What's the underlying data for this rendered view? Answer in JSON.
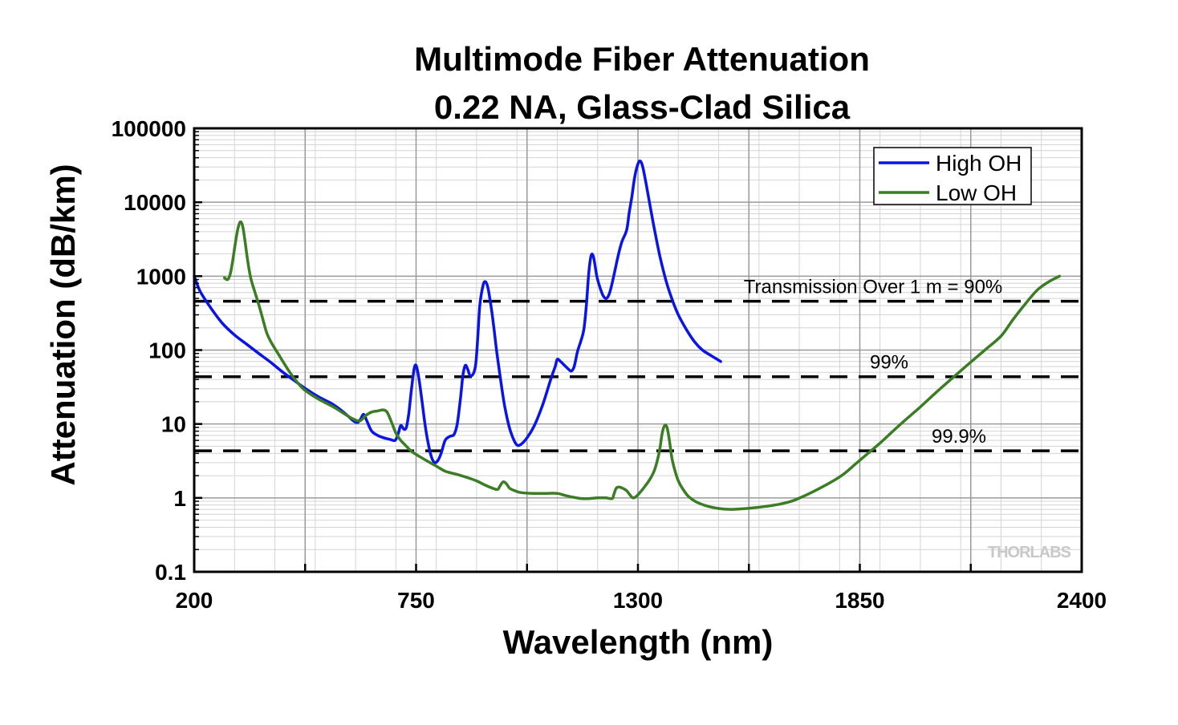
{
  "chart_data": {
    "type": "line",
    "title": [
      "Multimode Fiber Attenuation",
      "0.22 NA, Glass-Clad Silica"
    ],
    "xlabel": "Wavelength (nm)",
    "ylabel": "Attenuation (dB/km)",
    "xlim": [
      200,
      2400
    ],
    "ylim": [
      0.1,
      100000
    ],
    "yscale": "log",
    "xticks": [
      200,
      750,
      1300,
      1850,
      2400
    ],
    "yticks": [
      0.1,
      1,
      10,
      100,
      1000,
      10000,
      100000
    ],
    "ytick_labels": [
      "0.1",
      "1",
      "10",
      "100",
      "1000",
      "10000",
      "100000"
    ],
    "grid": true,
    "legend_position": "top-right",
    "series": [
      {
        "name": "High OH",
        "color": "#0a14e6",
        "points": [
          [
            200,
            1000
          ],
          [
            215,
            620
          ],
          [
            240,
            380
          ],
          [
            270,
            230
          ],
          [
            300,
            160
          ],
          [
            330,
            120
          ],
          [
            360,
            90
          ],
          [
            390,
            68
          ],
          [
            420,
            50
          ],
          [
            450,
            38
          ],
          [
            480,
            29
          ],
          [
            510,
            23
          ],
          [
            540,
            19
          ],
          [
            560,
            16
          ],
          [
            580,
            13
          ],
          [
            595,
            11
          ],
          [
            605,
            10.5
          ],
          [
            612,
            11.5
          ],
          [
            620,
            13.5
          ],
          [
            628,
            11
          ],
          [
            640,
            8
          ],
          [
            655,
            7
          ],
          [
            670,
            6.5
          ],
          [
            685,
            6.2
          ],
          [
            698,
            6
          ],
          [
            706,
            7.5
          ],
          [
            712,
            9.5
          ],
          [
            720,
            8.5
          ],
          [
            726,
            9
          ],
          [
            732,
            14
          ],
          [
            738,
            28
          ],
          [
            745,
            55
          ],
          [
            750,
            62
          ],
          [
            756,
            45
          ],
          [
            764,
            22
          ],
          [
            772,
            10
          ],
          [
            780,
            5.5
          ],
          [
            788,
            3.6
          ],
          [
            796,
            3
          ],
          [
            804,
            3.2
          ],
          [
            812,
            4
          ],
          [
            822,
            6
          ],
          [
            834,
            6.8
          ],
          [
            844,
            7.2
          ],
          [
            852,
            10
          ],
          [
            860,
            22
          ],
          [
            866,
            45
          ],
          [
            872,
            62
          ],
          [
            878,
            55
          ],
          [
            884,
            45
          ],
          [
            892,
            48
          ],
          [
            898,
            65
          ],
          [
            903,
            150
          ],
          [
            908,
            400
          ],
          [
            916,
            750
          ],
          [
            922,
            840
          ],
          [
            928,
            700
          ],
          [
            935,
            420
          ],
          [
            942,
            220
          ],
          [
            950,
            95
          ],
          [
            960,
            38
          ],
          [
            970,
            17
          ],
          [
            980,
            9.5
          ],
          [
            990,
            6.5
          ],
          [
            1000,
            5.2
          ],
          [
            1010,
            5.3
          ],
          [
            1025,
            6.5
          ],
          [
            1045,
            10
          ],
          [
            1065,
            19
          ],
          [
            1085,
            42
          ],
          [
            1095,
            60
          ],
          [
            1100,
            75
          ],
          [
            1108,
            70
          ],
          [
            1118,
            62
          ],
          [
            1128,
            55
          ],
          [
            1135,
            52
          ],
          [
            1142,
            60
          ],
          [
            1150,
            95
          ],
          [
            1158,
            130
          ],
          [
            1166,
            190
          ],
          [
            1172,
            400
          ],
          [
            1178,
            1100
          ],
          [
            1184,
            1900
          ],
          [
            1190,
            1800
          ],
          [
            1198,
            1000
          ],
          [
            1206,
            700
          ],
          [
            1214,
            540
          ],
          [
            1222,
            500
          ],
          [
            1230,
            600
          ],
          [
            1240,
            1000
          ],
          [
            1250,
            1800
          ],
          [
            1260,
            2900
          ],
          [
            1272,
            4200
          ],
          [
            1278,
            7000
          ],
          [
            1285,
            12000
          ],
          [
            1292,
            22000
          ],
          [
            1300,
            33000
          ],
          [
            1306,
            36000
          ],
          [
            1312,
            30000
          ],
          [
            1320,
            18000
          ],
          [
            1330,
            9000
          ],
          [
            1342,
            4000
          ],
          [
            1355,
            1800
          ],
          [
            1370,
            850
          ],
          [
            1385,
            480
          ],
          [
            1400,
            300
          ],
          [
            1420,
            190
          ],
          [
            1440,
            130
          ],
          [
            1460,
            100
          ],
          [
            1480,
            85
          ],
          [
            1500,
            73
          ],
          [
            1505,
            70
          ]
        ]
      },
      {
        "name": "Low OH",
        "color": "#3a7d23",
        "points": [
          [
            275,
            950
          ],
          [
            283,
            900
          ],
          [
            290,
            1100
          ],
          [
            296,
            1700
          ],
          [
            302,
            2800
          ],
          [
            308,
            4300
          ],
          [
            314,
            5400
          ],
          [
            320,
            4800
          ],
          [
            326,
            3000
          ],
          [
            332,
            1700
          ],
          [
            340,
            950
          ],
          [
            350,
            620
          ],
          [
            362,
            380
          ],
          [
            372,
            240
          ],
          [
            380,
            170
          ],
          [
            390,
            130
          ],
          [
            405,
            95
          ],
          [
            420,
            70
          ],
          [
            435,
            52
          ],
          [
            450,
            40
          ],
          [
            470,
            30
          ],
          [
            495,
            24
          ],
          [
            520,
            20
          ],
          [
            545,
            17
          ],
          [
            570,
            14
          ],
          [
            590,
            12
          ],
          [
            610,
            11
          ],
          [
            625,
            13
          ],
          [
            640,
            14.5
          ],
          [
            655,
            15
          ],
          [
            668,
            15.5
          ],
          [
            678,
            14.5
          ],
          [
            688,
            11
          ],
          [
            700,
            7.5
          ],
          [
            712,
            6
          ],
          [
            726,
            5
          ],
          [
            740,
            4.2
          ],
          [
            760,
            3.6
          ],
          [
            780,
            3.1
          ],
          [
            800,
            2.7
          ],
          [
            822,
            2.3
          ],
          [
            848,
            2.1
          ],
          [
            875,
            1.9
          ],
          [
            900,
            1.7
          ],
          [
            920,
            1.5
          ],
          [
            940,
            1.35
          ],
          [
            952,
            1.3
          ],
          [
            958,
            1.45
          ],
          [
            966,
            1.65
          ],
          [
            974,
            1.55
          ],
          [
            982,
            1.35
          ],
          [
            995,
            1.25
          ],
          [
            1010,
            1.18
          ],
          [
            1040,
            1.15
          ],
          [
            1070,
            1.15
          ],
          [
            1100,
            1.15
          ],
          [
            1120,
            1.08
          ],
          [
            1140,
            1.02
          ],
          [
            1160,
            0.98
          ],
          [
            1180,
            0.98
          ],
          [
            1200,
            1.0
          ],
          [
            1220,
            1.0
          ],
          [
            1236,
            0.98
          ],
          [
            1240,
            1.1
          ],
          [
            1246,
            1.35
          ],
          [
            1254,
            1.4
          ],
          [
            1262,
            1.35
          ],
          [
            1272,
            1.25
          ],
          [
            1280,
            1.1
          ],
          [
            1288,
            1.0
          ],
          [
            1296,
            1.05
          ],
          [
            1306,
            1.2
          ],
          [
            1318,
            1.45
          ],
          [
            1330,
            1.8
          ],
          [
            1340,
            2.3
          ],
          [
            1348,
            3.2
          ],
          [
            1354,
            4.5
          ],
          [
            1360,
            7.5
          ],
          [
            1366,
            9.5
          ],
          [
            1372,
            9
          ],
          [
            1378,
            6
          ],
          [
            1384,
            3.5
          ],
          [
            1392,
            2.3
          ],
          [
            1400,
            1.7
          ],
          [
            1410,
            1.35
          ],
          [
            1425,
            1.05
          ],
          [
            1445,
            0.88
          ],
          [
            1470,
            0.78
          ],
          [
            1500,
            0.72
          ],
          [
            1530,
            0.7
          ],
          [
            1570,
            0.72
          ],
          [
            1610,
            0.76
          ],
          [
            1650,
            0.82
          ],
          [
            1680,
            0.9
          ],
          [
            1710,
            1.05
          ],
          [
            1745,
            1.3
          ],
          [
            1780,
            1.65
          ],
          [
            1810,
            2.1
          ],
          [
            1840,
            2.9
          ],
          [
            1870,
            4
          ],
          [
            1900,
            5.5
          ],
          [
            1930,
            7.8
          ],
          [
            1960,
            11
          ],
          [
            2000,
            17
          ],
          [
            2040,
            27
          ],
          [
            2080,
            42
          ],
          [
            2120,
            65
          ],
          [
            2160,
            100
          ],
          [
            2200,
            155
          ],
          [
            2230,
            260
          ],
          [
            2260,
            420
          ],
          [
            2290,
            650
          ],
          [
            2320,
            850
          ],
          [
            2345,
            1000
          ]
        ]
      }
    ],
    "reference_lines": [
      {
        "y": 457,
        "label": "Transmission Over 1 m = 90%",
        "style": "dashed"
      },
      {
        "y": 43.6,
        "label": "99%",
        "style": "dashed"
      },
      {
        "y": 4.34,
        "label": "99.9%",
        "style": "dashed"
      }
    ],
    "watermark": "THORLABS"
  }
}
